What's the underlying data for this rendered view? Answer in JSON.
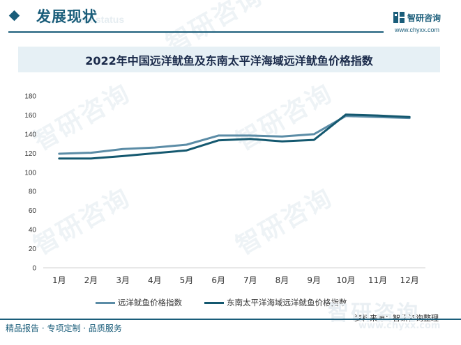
{
  "header": {
    "section_title": "发展现状",
    "section_subtitle": "ent status",
    "brand_name": "智研咨询",
    "brand_url": "www.chyxx.com",
    "brand_color": "#1a5d7a"
  },
  "watermark_text": "智研咨询",
  "footer": {
    "tagline": "精品报告 · 专项定制 · 品质服务",
    "source": "资料来源：智研咨询整理",
    "watermark_url": "www.chyxx.com"
  },
  "chart_data": {
    "type": "line",
    "title": "2022年中国远洋鱿鱼及东南太平洋海域远洋鱿鱼价格指数",
    "categories": [
      "1月",
      "2月",
      "3月",
      "4月",
      "5月",
      "6月",
      "7月",
      "8月",
      "9月",
      "10月",
      "11月",
      "12月"
    ],
    "series": [
      {
        "name": "远洋鱿鱼价格指数",
        "color": "#5b8ca6",
        "values": [
          119.5,
          120.5,
          124.5,
          126,
          129,
          138.5,
          138.5,
          137.5,
          140,
          159,
          158,
          157
        ]
      },
      {
        "name": "东南太平洋海域远洋鱿鱼价格指数",
        "color": "#14586f",
        "values": [
          114.5,
          114.5,
          117,
          120,
          123,
          133.5,
          135,
          132.5,
          134,
          160.5,
          159.5,
          158
        ]
      }
    ],
    "ylim": [
      0,
      180
    ],
    "yticks": [
      0,
      20,
      40,
      60,
      80,
      100,
      120,
      140,
      160,
      180
    ],
    "grid": false,
    "legend_position": "bottom"
  }
}
